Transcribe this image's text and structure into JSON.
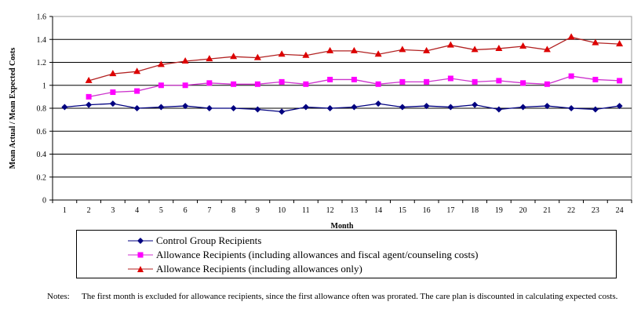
{
  "chart_data": {
    "type": "line",
    "title": "",
    "xlabel": "Month",
    "ylabel": "Mean Actual / Mean Expected Costs",
    "ylim": [
      0,
      1.6
    ],
    "yticks": [
      "0",
      "0.2",
      "0.4",
      "0.6",
      "0.8",
      "1",
      "1.2",
      "1.4",
      "1.6"
    ],
    "ytick_values": [
      0,
      0.2,
      0.4,
      0.6,
      0.8,
      1.0,
      1.2,
      1.4,
      1.6
    ],
    "grid": true,
    "legend_position": "bottom",
    "x": [
      1,
      2,
      3,
      4,
      5,
      6,
      7,
      8,
      9,
      10,
      11,
      12,
      13,
      14,
      15,
      16,
      17,
      18,
      19,
      20,
      21,
      22,
      23,
      24
    ],
    "series": [
      {
        "name": "Control Group Recipients",
        "color": "#000080",
        "marker": "diamond",
        "values": [
          0.81,
          0.83,
          0.84,
          0.8,
          0.81,
          0.82,
          0.8,
          0.8,
          0.79,
          0.77,
          0.81,
          0.8,
          0.81,
          0.84,
          0.81,
          0.82,
          0.81,
          0.83,
          0.79,
          0.81,
          0.82,
          0.8,
          0.79,
          0.82
        ]
      },
      {
        "name": "Allowance Recipients (including allowances and fiscal agent/counseling costs)",
        "color": "#FF00FF",
        "line_color": "#CC33CC",
        "marker": "square",
        "values": [
          null,
          0.9,
          0.94,
          0.95,
          1.0,
          1.0,
          1.02,
          1.01,
          1.01,
          1.03,
          1.01,
          1.05,
          1.05,
          1.01,
          1.03,
          1.03,
          1.06,
          1.03,
          1.04,
          1.02,
          1.01,
          1.08,
          1.05,
          1.04
        ]
      },
      {
        "name": "Allowance Recipients (including allowances only)",
        "color": "#DD0000",
        "line_color": "#B22222",
        "marker": "triangle",
        "values": [
          null,
          1.04,
          1.1,
          1.12,
          1.18,
          1.21,
          1.23,
          1.25,
          1.24,
          1.27,
          1.26,
          1.3,
          1.3,
          1.27,
          1.31,
          1.3,
          1.35,
          1.31,
          1.32,
          1.34,
          1.31,
          1.42,
          1.37,
          1.36
        ]
      }
    ]
  },
  "notes": {
    "label": "Notes:",
    "text": "The first month is excluded for allowance recipients, since the first allowance often was prorated.  The care plan is discounted in calculating expected costs."
  }
}
